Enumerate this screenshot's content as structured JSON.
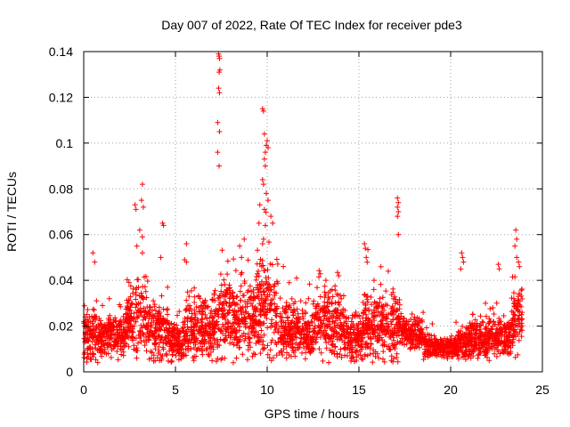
{
  "chart_data": {
    "type": "scatter",
    "title": "Day 007 of 2022, Rate Of TEC Index for receiver pde3",
    "xlabel": "GPS time / hours",
    "ylabel": "ROTI / TECUs",
    "xlim": [
      0,
      25
    ],
    "ylim": [
      0,
      0.14
    ],
    "grid": true,
    "marker": "plus",
    "color": "#ff0000",
    "x_ticks": [
      "0",
      "5",
      "10",
      "15",
      "20",
      "25"
    ],
    "y_ticks": [
      "0",
      "0.02",
      "0.04",
      "0.06",
      "0.08",
      "0.1",
      "0.12",
      "0.14"
    ],
    "series": [
      {
        "name": "ROTI",
        "points": [
          [
            7.35,
            0.139
          ],
          [
            7.38,
            0.138
          ],
          [
            7.4,
            0.137
          ],
          [
            7.42,
            0.132
          ],
          [
            7.38,
            0.131
          ],
          [
            7.35,
            0.124
          ],
          [
            7.4,
            0.122
          ],
          [
            7.3,
            0.109
          ],
          [
            7.4,
            0.105
          ],
          [
            7.3,
            0.096
          ],
          [
            7.38,
            0.09
          ],
          [
            9.75,
            0.115
          ],
          [
            9.8,
            0.114
          ],
          [
            9.85,
            0.104
          ],
          [
            10.0,
            0.101
          ],
          [
            9.95,
            0.099
          ],
          [
            10.05,
            0.098
          ],
          [
            9.9,
            0.096
          ],
          [
            9.85,
            0.093
          ],
          [
            9.9,
            0.09
          ],
          [
            9.75,
            0.084
          ],
          [
            9.8,
            0.082
          ],
          [
            9.95,
            0.078
          ],
          [
            9.6,
            0.073
          ],
          [
            10.05,
            0.075
          ],
          [
            9.85,
            0.071
          ],
          [
            9.55,
            0.065
          ],
          [
            10.2,
            0.068
          ],
          [
            9.9,
            0.064
          ],
          [
            10.3,
            0.065
          ],
          [
            9.8,
            0.058
          ],
          [
            9.75,
            0.056
          ],
          [
            2.8,
            0.073
          ],
          [
            2.85,
            0.071
          ],
          [
            3.2,
            0.082
          ],
          [
            3.15,
            0.075
          ],
          [
            3.25,
            0.072
          ],
          [
            3.05,
            0.062
          ],
          [
            3.2,
            0.059
          ],
          [
            2.9,
            0.055
          ],
          [
            3.2,
            0.052
          ],
          [
            4.3,
            0.065
          ],
          [
            4.35,
            0.064
          ],
          [
            4.2,
            0.05
          ],
          [
            5.6,
            0.056
          ],
          [
            5.5,
            0.049
          ],
          [
            5.6,
            0.048
          ],
          [
            8.75,
            0.058
          ],
          [
            8.5,
            0.055
          ],
          [
            8.6,
            0.05
          ],
          [
            17.1,
            0.076
          ],
          [
            17.15,
            0.074
          ],
          [
            17.1,
            0.072
          ],
          [
            17.15,
            0.07
          ],
          [
            17.1,
            0.068
          ],
          [
            17.15,
            0.06
          ],
          [
            23.55,
            0.062
          ],
          [
            23.6,
            0.058
          ],
          [
            23.5,
            0.055
          ],
          [
            23.6,
            0.05
          ],
          [
            15.3,
            0.056
          ],
          [
            15.35,
            0.054
          ],
          [
            15.4,
            0.05
          ],
          [
            15.45,
            0.048
          ],
          [
            20.6,
            0.052
          ],
          [
            20.65,
            0.05
          ],
          [
            20.7,
            0.048
          ],
          [
            20.55,
            0.045
          ],
          [
            22.6,
            0.047
          ],
          [
            22.65,
            0.045
          ],
          [
            23.7,
            0.048
          ],
          [
            23.75,
            0.046
          ],
          [
            0.5,
            0.052
          ],
          [
            0.6,
            0.048
          ],
          [
            13.9,
            0.042
          ],
          [
            13.2,
            0.04
          ],
          [
            16.6,
            0.044
          ],
          [
            16.2,
            0.046
          ],
          [
            11.6,
            0.041
          ],
          [
            11.2,
            0.039
          ],
          [
            18.5,
            0.026
          ],
          [
            19.0,
            0.021
          ],
          [
            21.9,
            0.03
          ],
          [
            22.3,
            0.028
          ]
        ]
      }
    ],
    "segments": [
      {
        "x": [
          0.0,
          0.8
        ],
        "level": 0.016,
        "spread": 0.011
      },
      {
        "x": [
          0.8,
          2.3
        ],
        "level": 0.016,
        "spread": 0.008
      },
      {
        "x": [
          2.3,
          3.5
        ],
        "level": 0.024,
        "spread": 0.014
      },
      {
        "x": [
          3.5,
          4.6
        ],
        "level": 0.017,
        "spread": 0.011
      },
      {
        "x": [
          4.6,
          5.5
        ],
        "level": 0.013,
        "spread": 0.008
      },
      {
        "x": [
          5.5,
          7.3
        ],
        "level": 0.018,
        "spread": 0.012
      },
      {
        "x": [
          7.3,
          8.2
        ],
        "level": 0.024,
        "spread": 0.015
      },
      {
        "x": [
          8.2,
          9.4
        ],
        "level": 0.022,
        "spread": 0.014
      },
      {
        "x": [
          9.4,
          10.6
        ],
        "level": 0.028,
        "spread": 0.018
      },
      {
        "x": [
          10.6,
          12.5
        ],
        "level": 0.018,
        "spread": 0.01
      },
      {
        "x": [
          12.5,
          14.2
        ],
        "level": 0.021,
        "spread": 0.013
      },
      {
        "x": [
          14.2,
          15.2
        ],
        "level": 0.015,
        "spread": 0.009
      },
      {
        "x": [
          15.2,
          17.3
        ],
        "level": 0.02,
        "spread": 0.013
      },
      {
        "x": [
          17.3,
          18.5
        ],
        "level": 0.017,
        "spread": 0.006
      },
      {
        "x": [
          18.5,
          20.4
        ],
        "level": 0.011,
        "spread": 0.004
      },
      {
        "x": [
          20.4,
          21.0
        ],
        "level": 0.012,
        "spread": 0.006
      },
      {
        "x": [
          21.0,
          23.3
        ],
        "level": 0.014,
        "spread": 0.008
      },
      {
        "x": [
          23.3,
          23.9
        ],
        "level": 0.025,
        "spread": 0.014
      }
    ]
  }
}
